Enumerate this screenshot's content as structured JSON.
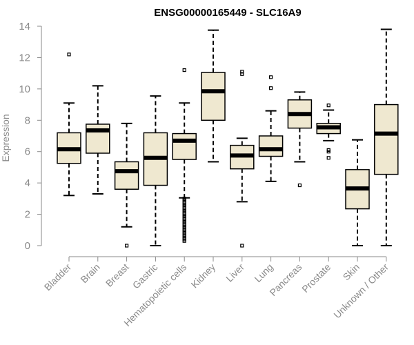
{
  "chart_data": {
    "type": "boxplot",
    "title": "ENSG00000165449 - SLC16A9",
    "xlabel": "",
    "ylabel": "Expression",
    "ylim": [
      0,
      14
    ],
    "yticks": [
      0,
      2,
      4,
      6,
      8,
      10,
      12,
      14
    ],
    "box_fill": "#efe8d0",
    "categories": [
      "Bladder",
      "Brain",
      "Breast",
      "Gastric",
      "Hematopoietic cells",
      "Kidney",
      "Liver",
      "Lung",
      "Pancreas",
      "Prostate",
      "Skin",
      "Unknown / Other"
    ],
    "boxes": [
      {
        "name": "Bladder",
        "min": 3.2,
        "q1": 5.25,
        "median": 6.15,
        "q3": 7.2,
        "max": 9.1,
        "outliers": [
          12.2
        ]
      },
      {
        "name": "Brain",
        "min": 3.3,
        "q1": 5.9,
        "median": 7.35,
        "q3": 7.75,
        "max": 10.2,
        "outliers": []
      },
      {
        "name": "Breast",
        "min": 1.2,
        "q1": 3.6,
        "median": 4.75,
        "q3": 5.35,
        "max": 7.8,
        "outliers": [
          0
        ]
      },
      {
        "name": "Gastric",
        "min": 0,
        "q1": 3.85,
        "median": 5.6,
        "q3": 7.2,
        "max": 9.55,
        "outliers": []
      },
      {
        "name": "Hematopoietic cells",
        "min": 3.05,
        "q1": 5.5,
        "median": 6.7,
        "q3": 7.15,
        "max": 9.1,
        "outliers": [
          11.2,
          3.0,
          2.9,
          2.8,
          2.7,
          2.6,
          2.5,
          2.4,
          2.3,
          2.2,
          2.1,
          2.0,
          1.9,
          1.8,
          1.7,
          1.6,
          1.5,
          1.4,
          1.3,
          1.2,
          1.1,
          1.0,
          0.9,
          0.8,
          0.7,
          0.6,
          0.5,
          0.4,
          0.3
        ]
      },
      {
        "name": "Kidney",
        "min": 5.35,
        "q1": 8.0,
        "median": 9.85,
        "q3": 11.05,
        "max": 13.75,
        "outliers": []
      },
      {
        "name": "Liver",
        "min": 2.8,
        "q1": 4.9,
        "median": 5.75,
        "q3": 6.4,
        "max": 6.85,
        "outliers": [
          11.1,
          10.95,
          0
        ]
      },
      {
        "name": "Lung",
        "min": 4.1,
        "q1": 5.7,
        "median": 6.15,
        "q3": 7.0,
        "max": 8.6,
        "outliers": [
          10.75,
          10.05
        ]
      },
      {
        "name": "Pancreas",
        "min": 5.35,
        "q1": 7.5,
        "median": 8.4,
        "q3": 9.3,
        "max": 9.8,
        "outliers": [
          3.85
        ]
      },
      {
        "name": "Prostate",
        "min": 6.7,
        "q1": 7.15,
        "median": 7.55,
        "q3": 7.8,
        "max": 8.65,
        "outliers": [
          8.95,
          6.1,
          6.0,
          5.6
        ]
      },
      {
        "name": "Skin",
        "min": 0,
        "q1": 2.35,
        "median": 3.65,
        "q3": 4.85,
        "max": 6.75,
        "outliers": []
      },
      {
        "name": "Unknown / Other",
        "min": 0,
        "q1": 4.55,
        "median": 7.15,
        "q3": 9.0,
        "max": 13.8,
        "outliers": []
      }
    ]
  }
}
